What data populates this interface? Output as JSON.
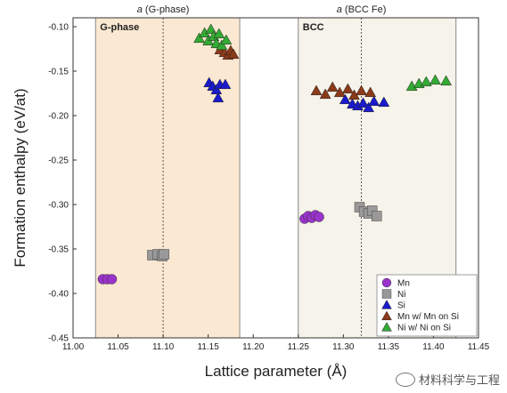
{
  "chart_data": {
    "type": "scatter",
    "xlabel": "Lattice parameter (Å)",
    "ylabel": "Formation enthalpy (eV/at)",
    "xlim": [
      11.0,
      11.45
    ],
    "ylim": [
      -0.45,
      -0.09
    ],
    "x_ticks": [
      "11.00",
      "11.05",
      "11.10",
      "11.15",
      "11.20",
      "11.25",
      "11.30",
      "11.35",
      "11.40",
      "11.45"
    ],
    "y_ticks": [
      "-0.10",
      "-0.15",
      "-0.20",
      "-0.25",
      "-0.30",
      "-0.35",
      "-0.40",
      "-0.45"
    ],
    "grid": false,
    "regions": [
      {
        "label": "G-phase",
        "x_range": [
          11.025,
          11.185
        ],
        "fill": "#fbe8d2",
        "ref_x": 11.1,
        "ref_label": "a (G-phase)"
      },
      {
        "label": "BCC",
        "x_range": [
          11.25,
          11.425
        ],
        "fill": "#f6f3ea",
        "ref_x": 11.32,
        "ref_label": "a (BCC Fe)"
      }
    ],
    "legend": {
      "position": "bottom-right"
    },
    "series": [
      {
        "name": "Mn",
        "marker": "circle",
        "color": "#9933cc",
        "x": [
          11.033,
          11.038,
          11.043,
          11.257,
          11.261,
          11.265,
          11.269,
          11.273
        ],
        "y": [
          -0.384,
          -0.384,
          -0.384,
          -0.316,
          -0.313,
          -0.315,
          -0.312,
          -0.314
        ]
      },
      {
        "name": "Ni",
        "marker": "square",
        "color": "#999999",
        "x": [
          11.088,
          11.094,
          11.099,
          11.101,
          11.318,
          11.323,
          11.328,
          11.332,
          11.337
        ],
        "y": [
          -0.357,
          -0.356,
          -0.358,
          -0.356,
          -0.303,
          -0.308,
          -0.31,
          -0.307,
          -0.313
        ]
      },
      {
        "name": "Si",
        "marker": "triangle",
        "color": "#1a1acc",
        "x": [
          11.151,
          11.155,
          11.159,
          11.161,
          11.163,
          11.169,
          11.302,
          11.31,
          11.316,
          11.322,
          11.328,
          11.334,
          11.345
        ],
        "y": [
          -0.163,
          -0.167,
          -0.171,
          -0.18,
          -0.165,
          -0.165,
          -0.182,
          -0.187,
          -0.189,
          -0.186,
          -0.191,
          -0.184,
          -0.185
        ]
      },
      {
        "name": "Mn w/ Mn on Si",
        "marker": "triangle",
        "color": "#8b3a1a",
        "x": [
          11.163,
          11.168,
          11.172,
          11.175,
          11.178,
          11.27,
          11.28,
          11.288,
          11.296,
          11.305,
          11.312,
          11.32,
          11.33
        ],
        "y": [
          -0.126,
          -0.129,
          -0.132,
          -0.127,
          -0.131,
          -0.172,
          -0.176,
          -0.168,
          -0.174,
          -0.17,
          -0.177,
          -0.172,
          -0.174
        ]
      },
      {
        "name": "Ni w/ Ni on Si",
        "marker": "triangle",
        "color": "#33aa33",
        "x": [
          11.14,
          11.146,
          11.15,
          11.153,
          11.156,
          11.159,
          11.162,
          11.165,
          11.17,
          11.376,
          11.384,
          11.392,
          11.402,
          11.414
        ],
        "y": [
          -0.113,
          -0.107,
          -0.116,
          -0.103,
          -0.111,
          -0.119,
          -0.108,
          -0.121,
          -0.115,
          -0.167,
          -0.164,
          -0.162,
          -0.16,
          -0.161
        ]
      }
    ]
  },
  "watermark": {
    "text": "材料科学与工程"
  }
}
